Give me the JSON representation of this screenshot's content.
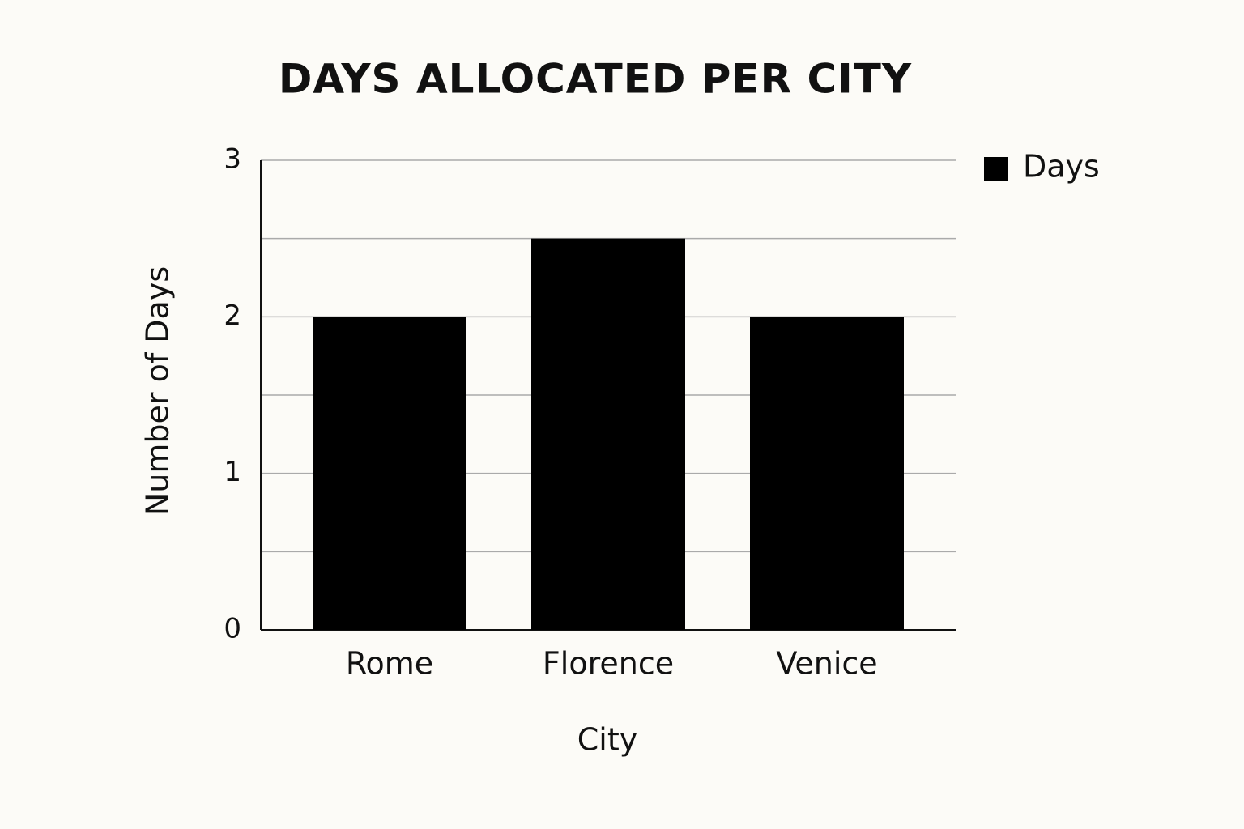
{
  "chart_data": {
    "type": "bar",
    "title": "DAYS ALLOCATED PER CITY",
    "x_label": "City",
    "y_label": "Number of Days",
    "categories": [
      "Rome",
      "Florence",
      "Venice"
    ],
    "series": [
      {
        "name": "Days",
        "color": "#000000",
        "values": [
          2,
          2.5,
          2
        ]
      }
    ],
    "ylim": [
      0,
      3
    ],
    "yticks": [
      0,
      1,
      2,
      3
    ],
    "minor_yticks": [
      0.5,
      1.5,
      2.5
    ],
    "grid": true,
    "legend": "right"
  }
}
